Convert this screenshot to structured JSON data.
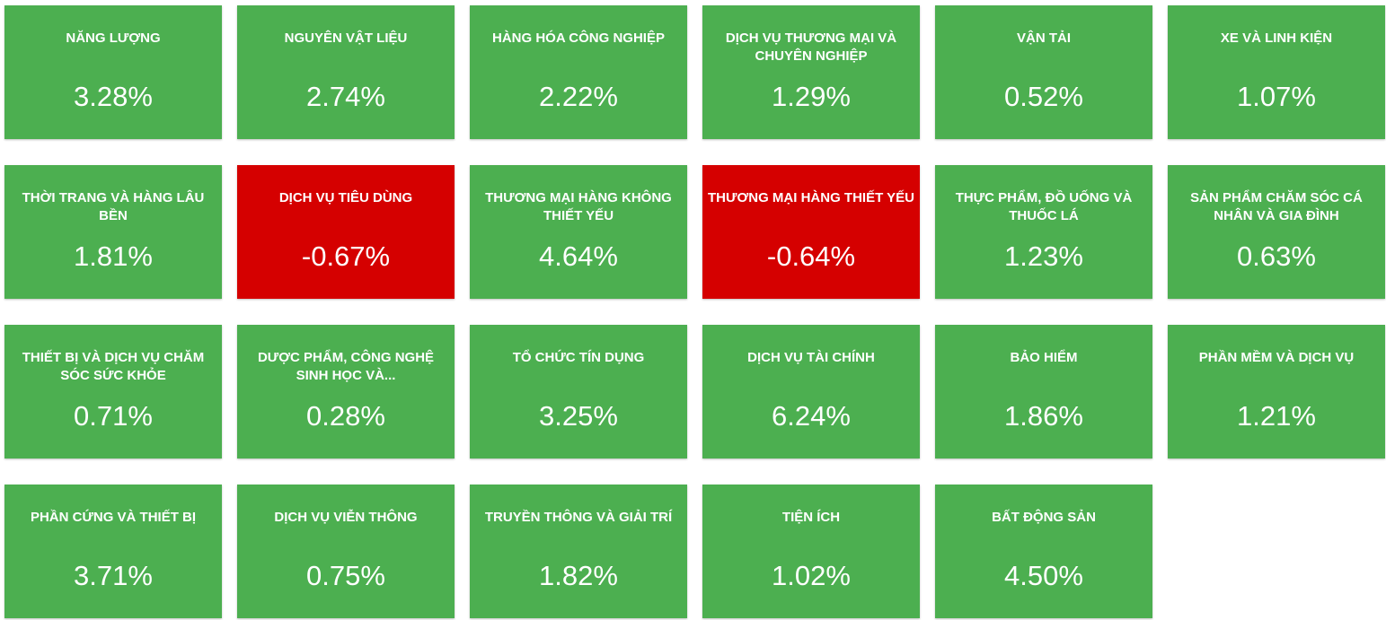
{
  "tiles": [
    {
      "label": "NĂNG LƯỢNG",
      "change": "3.28%",
      "color": "#4caf50"
    },
    {
      "label": "NGUYÊN VẬT LIỆU",
      "change": "2.74%",
      "color": "#4caf50"
    },
    {
      "label": "HÀNG HÓA CÔNG NGHIỆP",
      "change": "2.22%",
      "color": "#4caf50"
    },
    {
      "label": "DỊCH VỤ THƯƠNG MẠI VÀ CHUYÊN NGHIỆP",
      "change": "1.29%",
      "color": "#4caf50"
    },
    {
      "label": "VẬN TẢI",
      "change": "0.52%",
      "color": "#4caf50"
    },
    {
      "label": "XE VÀ LINH KIỆN",
      "change": "1.07%",
      "color": "#4caf50"
    },
    {
      "label": "THỜI TRANG VÀ HÀNG LÂU BỀN",
      "change": "1.81%",
      "color": "#4caf50"
    },
    {
      "label": "DỊCH VỤ TIÊU DÙNG",
      "change": "-0.67%",
      "color": "#d50000"
    },
    {
      "label": "THƯƠNG MẠI HÀNG KHÔNG THIẾT YẾU",
      "change": "4.64%",
      "color": "#4caf50"
    },
    {
      "label": "THƯƠNG MẠI HÀNG THIẾT YẾU",
      "change": "-0.64%",
      "color": "#d50000"
    },
    {
      "label": "THỰC PHẨM, ĐỒ UỐNG VÀ THUỐC LÁ",
      "change": "1.23%",
      "color": "#4caf50"
    },
    {
      "label": "SẢN PHẨM CHĂM SÓC CÁ NHÂN VÀ GIA ĐÌNH",
      "change": "0.63%",
      "color": "#4caf50"
    },
    {
      "label": "THIẾT BỊ VÀ DỊCH VỤ CHĂM SÓC SỨC KHỎE",
      "change": "0.71%",
      "color": "#4caf50"
    },
    {
      "label": "DƯỢC PHẨM, CÔNG NGHỆ SINH HỌC VÀ...",
      "change": "0.28%",
      "color": "#4caf50"
    },
    {
      "label": "TỔ CHỨC TÍN DỤNG",
      "change": "3.25%",
      "color": "#4caf50"
    },
    {
      "label": "DỊCH VỤ TÀI CHÍNH",
      "change": "6.24%",
      "color": "#4caf50"
    },
    {
      "label": "BẢO HIỂM",
      "change": "1.86%",
      "color": "#4caf50"
    },
    {
      "label": "PHẦN MỀM VÀ DỊCH VỤ",
      "change": "1.21%",
      "color": "#4caf50"
    },
    {
      "label": "PHẦN CỨNG VÀ THIẾT BỊ",
      "change": "3.71%",
      "color": "#4caf50"
    },
    {
      "label": "DỊCH VỤ VIỄN THÔNG",
      "change": "0.75%",
      "color": "#4caf50"
    },
    {
      "label": "TRUYỀN THÔNG VÀ GIẢI TRÍ",
      "change": "1.82%",
      "color": "#4caf50"
    },
    {
      "label": "TIỆN ÍCH",
      "change": "1.02%",
      "color": "#4caf50"
    },
    {
      "label": "BẤT ĐỘNG SẢN",
      "change": "4.50%",
      "color": "#4caf50"
    }
  ]
}
